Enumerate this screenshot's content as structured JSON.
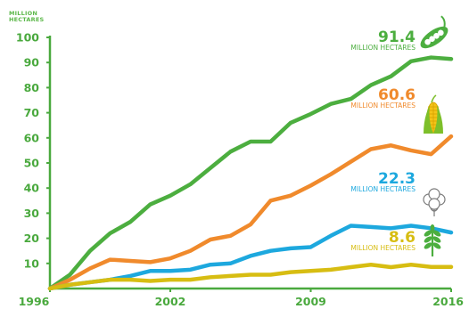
{
  "chart_data": {
    "type": "line",
    "title": "",
    "ylabel_lines": [
      "MILLION",
      "HECTARES"
    ],
    "xlabel": "",
    "x": [
      1996,
      1997,
      1998,
      1999,
      2000,
      2001,
      2002,
      2003,
      2004,
      2005,
      2006,
      2007,
      2008,
      2009,
      2010,
      2011,
      2012,
      2013,
      2014,
      2015,
      2016
    ],
    "x_ticks": [
      "1996",
      "2002",
      "2009",
      "2016"
    ],
    "y_ticks": [
      "10",
      "20",
      "30",
      "40",
      "50",
      "60",
      "70",
      "80",
      "90",
      "100"
    ],
    "ylim": [
      0,
      100
    ],
    "xlim": [
      1996,
      2016
    ],
    "axis_color": "#4aa93e",
    "grid": false,
    "series": [
      {
        "key": "green",
        "color": "#4cae3f",
        "icon": "pea-pod-icon",
        "label_value": "91.4",
        "label_unit": "MILLION HECTARES",
        "values": [
          0,
          5.5,
          15,
          22,
          26.5,
          33.5,
          37,
          41.5,
          48,
          54.5,
          58.5,
          58.5,
          66,
          69.5,
          73.5,
          75.5,
          81,
          84.5,
          90.5,
          92,
          91.4
        ]
      },
      {
        "key": "orange",
        "color": "#f08a2c",
        "icon": "corn-icon",
        "label_value": "60.6",
        "label_unit": "MILLION HECTARES",
        "values": [
          0,
          3.5,
          8,
          11.5,
          11,
          10.5,
          12,
          15,
          19.5,
          21,
          25.5,
          35,
          37,
          41,
          45.5,
          50.5,
          55.5,
          57,
          55,
          53.5,
          60.6
        ]
      },
      {
        "key": "blue",
        "color": "#1da8de",
        "icon": "cotton-icon",
        "label_value": "22.3",
        "label_unit": "MILLION HECTARES",
        "values": [
          0,
          1.5,
          2.5,
          3.5,
          5,
          7,
          7,
          7.5,
          9.5,
          10,
          13,
          15,
          16,
          16.5,
          21,
          25,
          24.5,
          24,
          25,
          24,
          22.3
        ]
      },
      {
        "key": "yellow",
        "color": "#d7bd12",
        "icon": "wheat-sprout-icon",
        "label_value": "8.6",
        "label_unit": "MILLION HECTARES",
        "values": [
          0,
          1.5,
          2.5,
          3.5,
          3.5,
          3,
          3.5,
          3.5,
          4.5,
          5,
          5.5,
          5.5,
          6.5,
          7,
          7.5,
          8.5,
          9.5,
          8.5,
          9.5,
          8.6,
          8.6
        ]
      }
    ]
  }
}
